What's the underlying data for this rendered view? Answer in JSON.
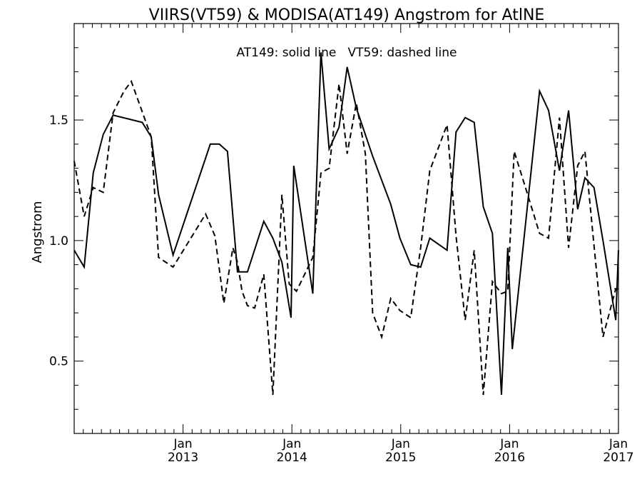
{
  "chart_data": {
    "type": "line",
    "title": "VIIRS(VT59) & MODISA(AT149)  Angstrom for AtlNE",
    "annotation": "AT149: solid line   VT59: dashed line",
    "ylabel": "Angstrom",
    "xlabel": "",
    "xlim": [
      2012.0,
      2017.0
    ],
    "ylim": [
      0.2,
      1.9
    ],
    "grid": false,
    "y_ticks": [
      {
        "value": 0.5,
        "label": "0.5"
      },
      {
        "value": 1.0,
        "label": "1.0"
      },
      {
        "value": 1.5,
        "label": "1.5"
      }
    ],
    "x_ticks": [
      {
        "value": 2013.0,
        "month": "Jan",
        "year": "2013"
      },
      {
        "value": 2014.0,
        "month": "Jan",
        "year": "2014"
      },
      {
        "value": 2015.0,
        "month": "Jan",
        "year": "2015"
      },
      {
        "value": 2016.0,
        "month": "Jan",
        "year": "2016"
      },
      {
        "value": 2017.0,
        "month": "Jan",
        "year": "2017"
      }
    ],
    "series": [
      {
        "name": "AT149",
        "style": "solid",
        "color": "#000000",
        "x": [
          2012.0,
          2012.092,
          2012.175,
          2012.267,
          2012.358,
          2012.625,
          2012.708,
          2012.775,
          2012.908,
          2013.25,
          2013.333,
          2013.408,
          2013.5,
          2013.592,
          2013.742,
          2013.825,
          2013.908,
          2013.992,
          2014.017,
          2014.192,
          2014.267,
          2014.342,
          2014.433,
          2014.508,
          2014.592,
          2014.742,
          2014.908,
          2014.992,
          2015.092,
          2015.183,
          2015.267,
          2015.425,
          2015.508,
          2015.592,
          2015.675,
          2015.758,
          2015.842,
          2015.925,
          2015.983,
          2016.025,
          2016.275,
          2016.358,
          2016.458,
          2016.542,
          2016.625,
          2016.692,
          2016.775,
          2016.858,
          2016.975,
          2017.0
        ],
        "values": [
          0.96,
          0.89,
          1.28,
          1.44,
          1.52,
          1.49,
          1.43,
          1.19,
          0.94,
          1.4,
          1.4,
          1.37,
          0.87,
          0.87,
          1.08,
          1.01,
          0.91,
          0.68,
          1.31,
          0.78,
          1.78,
          1.38,
          1.47,
          1.72,
          1.55,
          1.35,
          1.15,
          1.01,
          0.9,
          0.89,
          1.01,
          0.96,
          1.45,
          1.51,
          1.49,
          1.14,
          1.03,
          0.36,
          0.97,
          0.55,
          1.62,
          1.54,
          1.29,
          1.54,
          1.13,
          1.26,
          1.22,
          1.0,
          0.67,
          0.96
        ]
      },
      {
        "name": "VT59",
        "style": "dashed",
        "color": "#000000",
        "x": [
          2012.0,
          2012.092,
          2012.175,
          2012.267,
          2012.358,
          2012.458,
          2012.525,
          2012.708,
          2012.775,
          2012.908,
          2013.208,
          2013.292,
          2013.375,
          2013.458,
          2013.5,
          2013.542,
          2013.592,
          2013.658,
          2013.742,
          2013.825,
          2013.908,
          2013.975,
          2014.042,
          2014.192,
          2014.267,
          2014.342,
          2014.433,
          2014.508,
          2014.592,
          2014.675,
          2014.742,
          2014.825,
          2014.908,
          2014.992,
          2015.092,
          2015.183,
          2015.267,
          2015.425,
          2015.508,
          2015.592,
          2015.675,
          2015.758,
          2015.842,
          2015.925,
          2015.983,
          2016.042,
          2016.125,
          2016.275,
          2016.358,
          2016.458,
          2016.542,
          2016.625,
          2016.692,
          2016.775,
          2016.858,
          2016.975,
          2017.0
        ],
        "values": [
          1.33,
          1.1,
          1.22,
          1.2,
          1.53,
          1.62,
          1.66,
          1.43,
          0.93,
          0.89,
          1.11,
          1.02,
          0.74,
          0.97,
          0.91,
          0.79,
          0.73,
          0.72,
          0.86,
          0.36,
          1.19,
          0.82,
          0.79,
          0.93,
          1.28,
          1.3,
          1.65,
          1.36,
          1.57,
          1.36,
          0.7,
          0.6,
          0.76,
          0.71,
          0.68,
          0.97,
          1.29,
          1.48,
          1.02,
          0.67,
          0.96,
          0.36,
          0.83,
          0.78,
          0.79,
          1.37,
          1.25,
          1.03,
          1.01,
          1.51,
          0.97,
          1.31,
          1.37,
          0.98,
          0.6,
          0.8,
          0.79
        ]
      }
    ]
  }
}
